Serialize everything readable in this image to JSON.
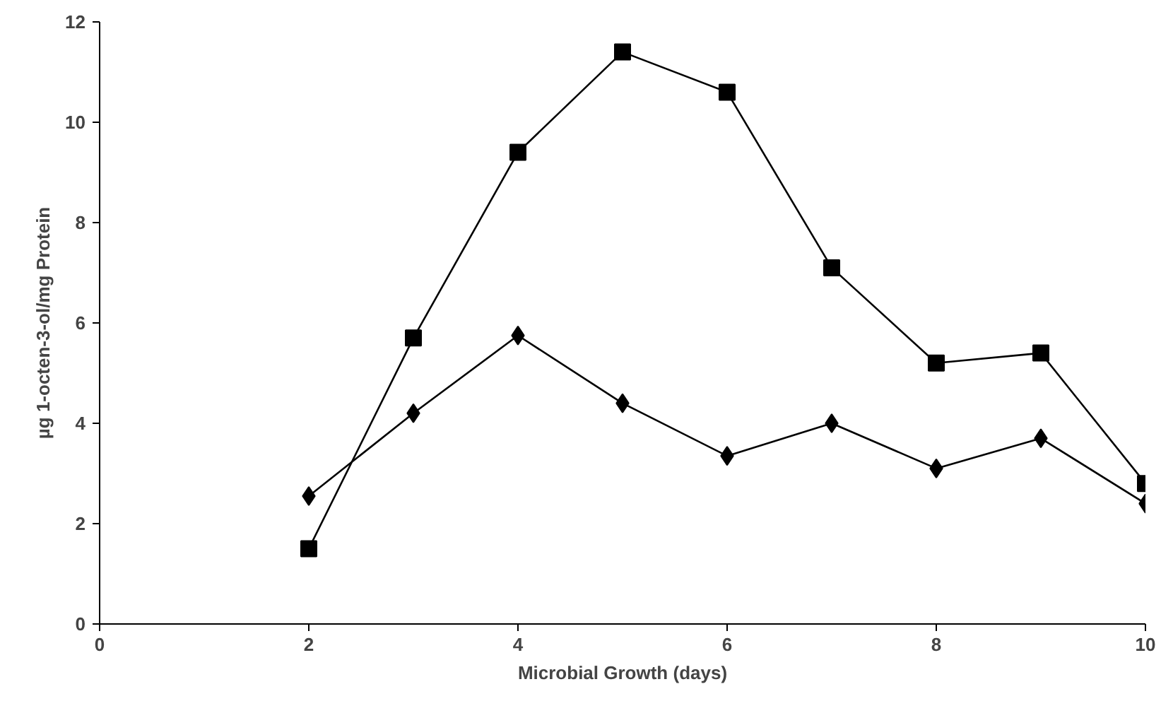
{
  "chart_data": {
    "type": "line",
    "xlabel": "Microbial Growth (days)",
    "ylabel": "µg 1-octen-3-ol/mg Protein",
    "x": [
      2,
      3,
      4,
      5,
      6,
      7,
      8,
      9,
      10
    ],
    "series": [
      {
        "color": "#000000",
        "marker": "square",
        "values": [
          1.5,
          5.7,
          9.4,
          11.4,
          10.6,
          7.1,
          5.2,
          5.4,
          2.8
        ]
      },
      {
        "color": "#000000",
        "marker": "diamond",
        "values": [
          2.55,
          4.2,
          5.75,
          4.4,
          3.35,
          4.0,
          3.1,
          3.7,
          2.4
        ]
      }
    ],
    "xlim": [
      0,
      10
    ],
    "xticks": [
      0,
      2,
      4,
      6,
      8,
      10
    ],
    "ylim": [
      0,
      12
    ],
    "yticks": [
      0,
      2,
      4,
      6,
      8,
      10,
      12
    ],
    "grid": false
  }
}
